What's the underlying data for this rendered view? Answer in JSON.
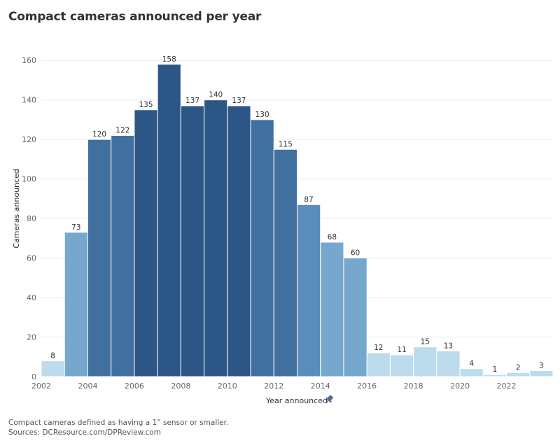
{
  "title": "Compact cameras announced per year",
  "chart_data": {
    "type": "bar",
    "title": "Compact cameras announced per year",
    "xlabel": "Year announced",
    "ylabel": "Cameras announced",
    "x_axis_icon": "pin-icon",
    "categories": [
      "2002",
      "2003",
      "2004",
      "2005",
      "2006",
      "2007",
      "2008",
      "2009",
      "2010",
      "2011",
      "2012",
      "2013",
      "2014",
      "2015",
      "2016",
      "2017",
      "2018",
      "2019",
      "2020",
      "2021",
      "2022",
      "2023"
    ],
    "values": [
      8,
      73,
      120,
      122,
      135,
      158,
      137,
      140,
      137,
      130,
      115,
      87,
      68,
      60,
      12,
      11,
      15,
      13,
      4,
      1,
      2,
      3
    ],
    "data_labels": [
      "8",
      "73",
      "120",
      "122",
      "135",
      "158",
      "137",
      "140",
      "137",
      "130",
      "115",
      "87",
      "68",
      "60",
      "12",
      "11",
      "15",
      "13",
      "4",
      "1",
      "2",
      "3"
    ],
    "x_ticks": [
      "2002",
      "2004",
      "2006",
      "2008",
      "2010",
      "2012",
      "2014",
      "2016",
      "2018",
      "2020",
      "2022"
    ],
    "y_ticks": [
      "0",
      "20",
      "40",
      "60",
      "80",
      "100",
      "120",
      "140",
      "160"
    ],
    "ylim": [
      0,
      170
    ],
    "grid": true,
    "color_scale": [
      "#bcdcee",
      "#76a8cd",
      "#5a8cbc",
      "#416fa0",
      "#2c5686"
    ]
  },
  "footnotes": [
    "Compact cameras defined as having a 1” sensor or smaller.",
    "Sources: DCResource.com/DPReview.com"
  ]
}
